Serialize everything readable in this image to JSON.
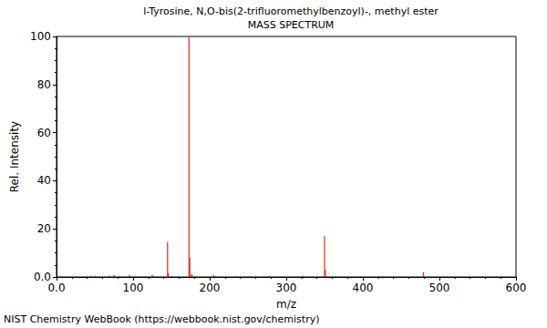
{
  "chart_data": {
    "type": "bar",
    "title": "l-Tyrosine, N,O-bis(2-trifluoromethylbenzoyl)-, methyl ester",
    "subtitle": "MASS SPECTRUM",
    "footer": "NIST Chemistry WebBook (https://webbook.nist.gov/chemistry)",
    "x_label": "m/z",
    "y_label": "Rel. Intensity",
    "x": [
      39,
      45,
      50,
      69,
      75,
      76,
      95,
      96,
      107,
      125,
      126,
      145,
      146,
      151,
      173,
      174,
      175,
      177,
      205,
      207,
      250,
      278,
      322,
      350,
      351,
      352,
      420,
      479,
      480
    ],
    "values": [
      0.5,
      0.5,
      0.5,
      0.6,
      0.8,
      0.5,
      0.8,
      0.4,
      0.4,
      0.9,
      0.5,
      14.5,
      1.5,
      0.5,
      100,
      8,
      1,
      1,
      0.8,
      0.5,
      0.3,
      0.5,
      0.5,
      17,
      3,
      0.5,
      0.3,
      2,
      0.4
    ],
    "color": "#e8231a",
    "xlim": [
      0,
      600
    ],
    "xticks": [
      {
        "value": 0,
        "label": "0.0"
      },
      100,
      200,
      300,
      400,
      500,
      600
    ],
    "ylim": [
      0,
      100
    ],
    "yticks": [
      {
        "value": 0,
        "label": "0.0"
      },
      20,
      40,
      60,
      80,
      100
    ],
    "grid": false
  }
}
